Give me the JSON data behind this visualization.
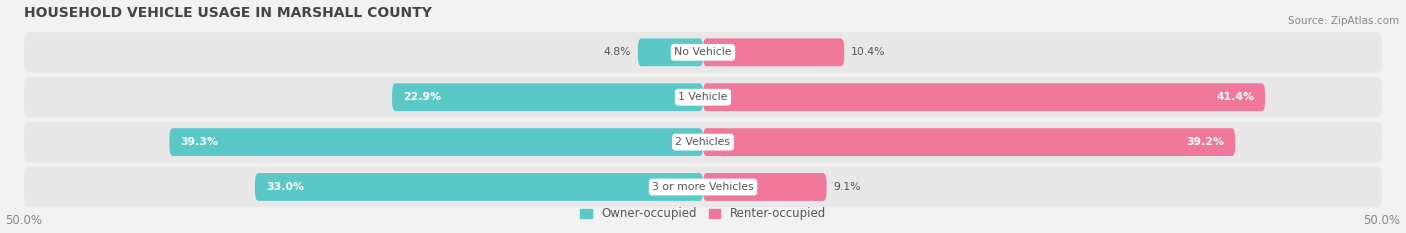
{
  "title": "HOUSEHOLD VEHICLE USAGE IN MARSHALL COUNTY",
  "source": "Source: ZipAtlas.com",
  "categories": [
    "No Vehicle",
    "1 Vehicle",
    "2 Vehicles",
    "3 or more Vehicles"
  ],
  "owner_values": [
    4.8,
    22.9,
    39.3,
    33.0
  ],
  "renter_values": [
    10.4,
    41.4,
    39.2,
    9.1
  ],
  "owner_color": "#5BC8C8",
  "renter_color": "#F07898",
  "owner_label": "Owner-occupied",
  "renter_label": "Renter-occupied",
  "xlim": [
    -50,
    50
  ],
  "bar_height": 0.62,
  "background_color": "#f2f2f2",
  "bar_bg_color": "#e8e8e8",
  "title_fontsize": 10,
  "label_fontsize": 8,
  "axis_fontsize": 8
}
